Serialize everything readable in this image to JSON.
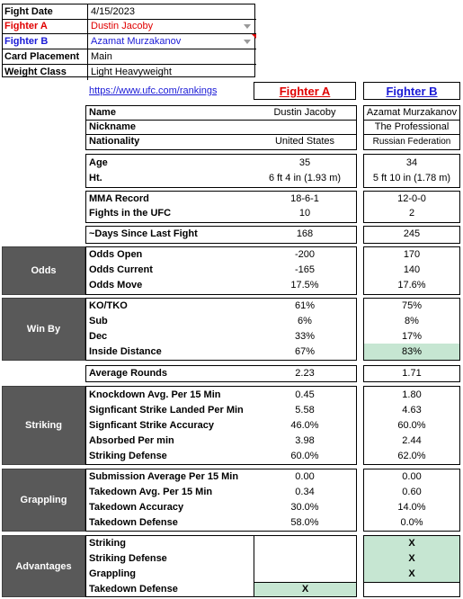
{
  "header": {
    "fight_date_label": "Fight Date",
    "fight_date": "4/15/2023",
    "fighter_a_label": "Fighter A",
    "fighter_a": "Dustin Jacoby",
    "fighter_b_label": "Fighter B",
    "fighter_b": "Azamat Murzakanov",
    "card_label": "Card Placement",
    "card": "Main",
    "weight_label": "Weight Class",
    "weight": "Light Heavyweight"
  },
  "link": "https://www.ufc.com/rankings",
  "col_a": "Fighter A",
  "col_b": "Fighter B",
  "bio": {
    "name_label": "Name",
    "name_a": "Dustin Jacoby",
    "name_b": "Azamat Murzakanov",
    "nick_label": "Nickname",
    "nick_a": "",
    "nick_b": "The Professional",
    "nat_label": "Nationality",
    "nat_a": "United States",
    "nat_b": "Russian Federation"
  },
  "physical": {
    "age_label": "Age",
    "age_a": "35",
    "age_b": "34",
    "ht_label": "Ht.",
    "ht_a": "6 ft 4 in (1.93 m)",
    "ht_b": "5 ft 10 in (1.78 m)"
  },
  "record": {
    "mma_label": "MMA Record",
    "mma_a": "18-6-1",
    "mma_b": "12-0-0",
    "ufc_label": "Fights in the UFC",
    "ufc_a": "10",
    "ufc_b": "2"
  },
  "days": {
    "label": "~Days Since Last Fight",
    "a": "168",
    "b": "245"
  },
  "odds": {
    "section": "Odds",
    "open_label": "Odds Open",
    "open_a": "-200",
    "open_b": "170",
    "current_label": "Odds Current",
    "current_a": "-165",
    "current_b": "140",
    "move_label": "Odds Move",
    "move_a": "17.5%",
    "move_b": "17.6%"
  },
  "winby": {
    "section": "Win By",
    "ko_label": "KO/TKO",
    "ko_a": "61%",
    "ko_b": "75%",
    "sub_label": "Sub",
    "sub_a": "6%",
    "sub_b": "8%",
    "dec_label": "Dec",
    "dec_a": "33%",
    "dec_b": "17%",
    "inside_label": "Inside Distance",
    "inside_a": "67%",
    "inside_b": "83%"
  },
  "rounds": {
    "label": "Average Rounds",
    "a": "2.23",
    "b": "1.71"
  },
  "striking": {
    "section": "Striking",
    "kd_label": "Knockdown Avg. Per 15 Min",
    "kd_a": "0.45",
    "kd_b": "1.80",
    "slpm_label": "Signficant Strike Landed Per Min",
    "slpm_a": "5.58",
    "slpm_b": "4.63",
    "acc_label": "Signficant Strike Accuracy",
    "acc_a": "46.0%",
    "acc_b": "60.0%",
    "abs_label": "Absorbed Per min",
    "abs_a": "3.98",
    "abs_b": "2.44",
    "def_label": "Striking Defense",
    "def_a": "60.0%",
    "def_b": "62.0%"
  },
  "grappling": {
    "section": "Grappling",
    "sub_label": "Submission Average  Per 15 Min",
    "sub_a": "0.00",
    "sub_b": "0.00",
    "td_label": "Takedown Avg. Per 15 Min",
    "td_a": "0.34",
    "td_b": "0.60",
    "tdacc_label": "Takedown Accuracy",
    "tdacc_a": "30.0%",
    "tdacc_b": "14.0%",
    "tddef_label": "Takedown Defense",
    "tddef_a": "58.0%",
    "tddef_b": "0.0%"
  },
  "advantages": {
    "section": "Advantages",
    "striking_label": "Striking",
    "striking_a": "",
    "striking_b": "X",
    "strdef_label": "Striking Defense",
    "strdef_a": "",
    "strdef_b": "X",
    "grap_label": "Grappling",
    "grap_a": "",
    "grap_b": "X",
    "tddef_label": "Takedown Defense",
    "tddef_a": "X",
    "tddef_b": ""
  },
  "colors": {
    "fighter_a": "#e00000",
    "fighter_b": "#1a1ad6",
    "highlight": "#c6e6d2",
    "section_bg": "#595959"
  }
}
